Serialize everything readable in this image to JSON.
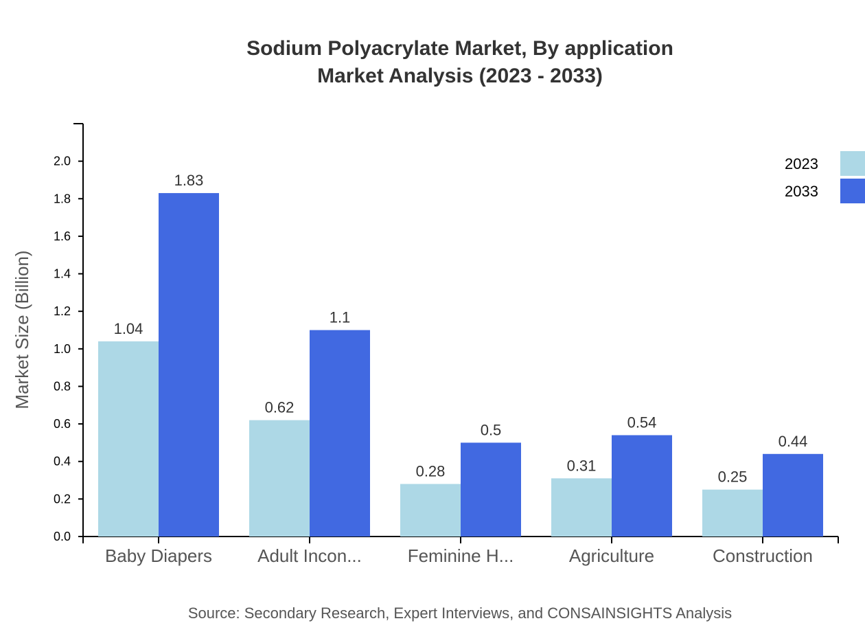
{
  "chart_data": {
    "type": "bar",
    "title": "Sodium Polyacrylate Market, By application",
    "subtitle": "Market Analysis (2023 - 2033)",
    "xlabel": "",
    "ylabel": "Market Size (Billion)",
    "categories": [
      "Baby Diapers",
      "Adult Incon...",
      "Feminine H...",
      "Agriculture",
      "Construction"
    ],
    "series": [
      {
        "name": "2023",
        "color": "#add8e6",
        "values": [
          1.04,
          0.62,
          0.28,
          0.31,
          0.25
        ],
        "labels": [
          "1.04",
          "0.62",
          "0.28",
          "0.31",
          "0.25"
        ]
      },
      {
        "name": "2033",
        "color": "#4169e1",
        "values": [
          1.83,
          1.1,
          0.5,
          0.54,
          0.44
        ],
        "labels": [
          "1.83",
          "1.1",
          "0.5",
          "0.54",
          "0.44"
        ]
      }
    ],
    "ylim": [
      0,
      2.2
    ],
    "yticks": [
      "0.0",
      "0.2",
      "0.4",
      "0.6",
      "0.8",
      "1.0",
      "1.2",
      "1.4",
      "1.6",
      "1.8",
      "2.0"
    ],
    "grid": false,
    "legend_position": "top-right",
    "source": "Source: Secondary Research, Expert Interviews, and CONSAINSIGHTS Analysis"
  }
}
